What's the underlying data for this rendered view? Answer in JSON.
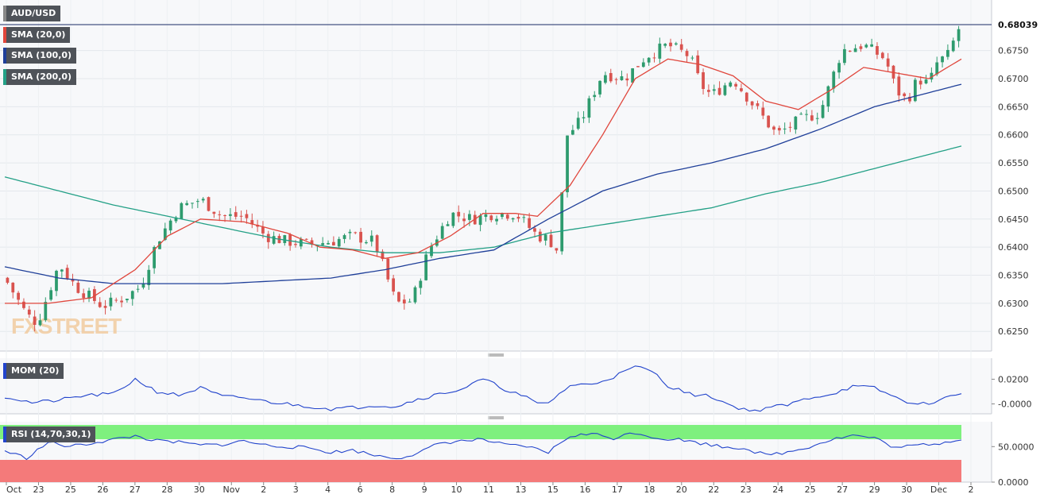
{
  "instrument": "AUD/USD",
  "last_price": "0.68039",
  "watermark": "FXSTREET",
  "indicators": {
    "sma20": {
      "label": "SMA (20,0)",
      "color": "#e0463c"
    },
    "sma100": {
      "label": "SMA (100,0)",
      "color": "#1f3f99"
    },
    "sma200": {
      "label": "SMA (200,0)",
      "color": "#23a086"
    },
    "mom": {
      "label": "MOM (20)",
      "color": "#2244cc"
    },
    "rsi": {
      "label": "RSI (14,70,30,1)",
      "color": "#2244cc"
    }
  },
  "colors": {
    "up": "#2e9b6e",
    "down": "#d9534f",
    "overbought_zone": "#7ef07e",
    "oversold_zone": "#f47a7a"
  },
  "chart_data": {
    "type": "candlestick",
    "price_axis": {
      "ticks": [
        "0.6750",
        "0.6700",
        "0.6650",
        "0.6600",
        "0.6550",
        "0.6500",
        "0.6450",
        "0.6400",
        "0.6350",
        "0.6300",
        "0.6250"
      ],
      "ylim": [
        0.6215,
        0.684
      ]
    },
    "x_ticks": [
      "Oct",
      "23",
      "25",
      "26",
      "27",
      "28",
      "30",
      "Nov",
      "2",
      "3",
      "4",
      "6",
      "8",
      "9",
      "10",
      "11",
      "13",
      "15",
      "16",
      "17",
      "18",
      "20",
      "22",
      "23",
      "24",
      "25",
      "27",
      "29",
      "30",
      "Dec",
      "2"
    ],
    "mom_axis": {
      "ticks": [
        "0.0200",
        "-0.0000"
      ],
      "ylim": [
        -0.008,
        0.037
      ]
    },
    "rsi_axis": {
      "ticks": [
        "50.0000",
        "0.0000"
      ],
      "ylim": [
        0,
        85
      ],
      "overbought": 70,
      "oversold": 30
    },
    "candle_count": 176,
    "close_path": [
      [
        0,
        0.6345
      ],
      [
        4,
        0.628
      ],
      [
        6,
        0.6265
      ],
      [
        10,
        0.637
      ],
      [
        13,
        0.633
      ],
      [
        18,
        0.6295
      ],
      [
        22,
        0.631
      ],
      [
        25,
        0.633
      ],
      [
        28,
        0.641
      ],
      [
        32,
        0.647
      ],
      [
        36,
        0.6485
      ],
      [
        40,
        0.6455
      ],
      [
        44,
        0.6455
      ],
      [
        48,
        0.642
      ],
      [
        52,
        0.641
      ],
      [
        56,
        0.6405
      ],
      [
        60,
        0.641
      ],
      [
        64,
        0.642
      ],
      [
        68,
        0.641
      ],
      [
        72,
        0.63
      ],
      [
        75,
        0.6305
      ],
      [
        78,
        0.6395
      ],
      [
        82,
        0.646
      ],
      [
        86,
        0.645
      ],
      [
        90,
        0.646
      ],
      [
        94,
        0.646
      ],
      [
        98,
        0.642
      ],
      [
        100,
        0.6415
      ],
      [
        102,
        0.639
      ],
      [
        103,
        0.6595
      ],
      [
        106,
        0.6625
      ],
      [
        110,
        0.671
      ],
      [
        114,
        0.67
      ],
      [
        118,
        0.674
      ],
      [
        122,
        0.676
      ],
      [
        126,
        0.674
      ],
      [
        128,
        0.669
      ],
      [
        130,
        0.667
      ],
      [
        134,
        0.67
      ],
      [
        138,
        0.665
      ],
      [
        142,
        0.66
      ],
      [
        146,
        0.6625
      ],
      [
        150,
        0.664
      ],
      [
        154,
        0.675
      ],
      [
        158,
        0.676
      ],
      [
        162,
        0.6735
      ],
      [
        164,
        0.668
      ],
      [
        166,
        0.666
      ],
      [
        168,
        0.67
      ],
      [
        170,
        0.669
      ],
      [
        172,
        0.674
      ],
      [
        173,
        0.673
      ],
      [
        176,
        0.68
      ]
    ],
    "sma20_path": [
      [
        0,
        0.63
      ],
      [
        8,
        0.63
      ],
      [
        16,
        0.631
      ],
      [
        24,
        0.636
      ],
      [
        30,
        0.642
      ],
      [
        36,
        0.645
      ],
      [
        44,
        0.6445
      ],
      [
        52,
        0.6425
      ],
      [
        58,
        0.64
      ],
      [
        64,
        0.6395
      ],
      [
        70,
        0.638
      ],
      [
        76,
        0.639
      ],
      [
        82,
        0.642
      ],
      [
        88,
        0.646
      ],
      [
        94,
        0.646
      ],
      [
        98,
        0.6455
      ],
      [
        104,
        0.651
      ],
      [
        110,
        0.66
      ],
      [
        116,
        0.67
      ],
      [
        122,
        0.6735
      ],
      [
        128,
        0.6725
      ],
      [
        134,
        0.6705
      ],
      [
        140,
        0.666
      ],
      [
        146,
        0.6645
      ],
      [
        152,
        0.668
      ],
      [
        158,
        0.672
      ],
      [
        164,
        0.671
      ],
      [
        170,
        0.67
      ],
      [
        176,
        0.6735
      ]
    ],
    "sma100_path": [
      [
        0,
        0.6365
      ],
      [
        10,
        0.6345
      ],
      [
        20,
        0.6335
      ],
      [
        30,
        0.6335
      ],
      [
        40,
        0.6335
      ],
      [
        50,
        0.634
      ],
      [
        60,
        0.6345
      ],
      [
        70,
        0.636
      ],
      [
        80,
        0.638
      ],
      [
        90,
        0.6395
      ],
      [
        100,
        0.645
      ],
      [
        110,
        0.65
      ],
      [
        120,
        0.653
      ],
      [
        130,
        0.655
      ],
      [
        140,
        0.6575
      ],
      [
        150,
        0.661
      ],
      [
        160,
        0.665
      ],
      [
        170,
        0.6675
      ],
      [
        176,
        0.669
      ]
    ],
    "sma200_path": [
      [
        0,
        0.6525
      ],
      [
        10,
        0.65
      ],
      [
        20,
        0.6475
      ],
      [
        30,
        0.6455
      ],
      [
        40,
        0.6435
      ],
      [
        50,
        0.6415
      ],
      [
        60,
        0.64
      ],
      [
        70,
        0.639
      ],
      [
        80,
        0.639
      ],
      [
        90,
        0.64
      ],
      [
        100,
        0.6425
      ],
      [
        110,
        0.644
      ],
      [
        120,
        0.6455
      ],
      [
        130,
        0.647
      ],
      [
        140,
        0.6495
      ],
      [
        150,
        0.6515
      ],
      [
        160,
        0.654
      ],
      [
        170,
        0.6565
      ],
      [
        176,
        0.658
      ]
    ],
    "mom_path": [
      [
        0,
        0.006
      ],
      [
        5,
        0.001
      ],
      [
        10,
        0.003
      ],
      [
        15,
        0.007
      ],
      [
        20,
        0.008
      ],
      [
        24,
        0.02
      ],
      [
        28,
        0.01
      ],
      [
        32,
        0.007
      ],
      [
        36,
        0.013
      ],
      [
        40,
        0.006
      ],
      [
        44,
        0.005
      ],
      [
        48,
        0.002
      ],
      [
        52,
        0.0
      ],
      [
        56,
        -0.002
      ],
      [
        60,
        -0.004
      ],
      [
        64,
        -0.003
      ],
      [
        68,
        -0.001
      ],
      [
        72,
        -0.002
      ],
      [
        76,
        0.004
      ],
      [
        80,
        0.008
      ],
      [
        84,
        0.012
      ],
      [
        88,
        0.02
      ],
      [
        92,
        0.012
      ],
      [
        96,
        0.005
      ],
      [
        98,
        0.0
      ],
      [
        100,
        0.001
      ],
      [
        104,
        0.015
      ],
      [
        108,
        0.016
      ],
      [
        112,
        0.022
      ],
      [
        116,
        0.03
      ],
      [
        119,
        0.027
      ],
      [
        122,
        0.015
      ],
      [
        126,
        0.008
      ],
      [
        130,
        0.006
      ],
      [
        134,
        -0.002
      ],
      [
        138,
        -0.006
      ],
      [
        140,
        -0.003
      ],
      [
        144,
        -0.001
      ],
      [
        148,
        0.005
      ],
      [
        152,
        0.008
      ],
      [
        156,
        0.014
      ],
      [
        160,
        0.013
      ],
      [
        164,
        0.005
      ],
      [
        168,
        -0.001
      ],
      [
        172,
        0.003
      ],
      [
        176,
        0.009
      ]
    ],
    "rsi_path": [
      [
        0,
        44
      ],
      [
        4,
        34
      ],
      [
        8,
        56
      ],
      [
        12,
        50
      ],
      [
        16,
        55
      ],
      [
        20,
        60
      ],
      [
        24,
        65
      ],
      [
        28,
        58
      ],
      [
        32,
        56
      ],
      [
        36,
        52
      ],
      [
        40,
        53
      ],
      [
        44,
        58
      ],
      [
        48,
        52
      ],
      [
        52,
        50
      ],
      [
        56,
        48
      ],
      [
        60,
        42
      ],
      [
        64,
        45
      ],
      [
        68,
        38
      ],
      [
        72,
        34
      ],
      [
        76,
        40
      ],
      [
        80,
        55
      ],
      [
        84,
        58
      ],
      [
        88,
        60
      ],
      [
        92,
        52
      ],
      [
        96,
        50
      ],
      [
        100,
        42
      ],
      [
        104,
        65
      ],
      [
        108,
        68
      ],
      [
        112,
        62
      ],
      [
        116,
        70
      ],
      [
        120,
        62
      ],
      [
        124,
        60
      ],
      [
        128,
        55
      ],
      [
        132,
        50
      ],
      [
        136,
        48
      ],
      [
        140,
        38
      ],
      [
        144,
        42
      ],
      [
        148,
        50
      ],
      [
        152,
        60
      ],
      [
        156,
        66
      ],
      [
        160,
        62
      ],
      [
        164,
        48
      ],
      [
        168,
        52
      ],
      [
        172,
        55
      ],
      [
        176,
        61
      ]
    ]
  }
}
